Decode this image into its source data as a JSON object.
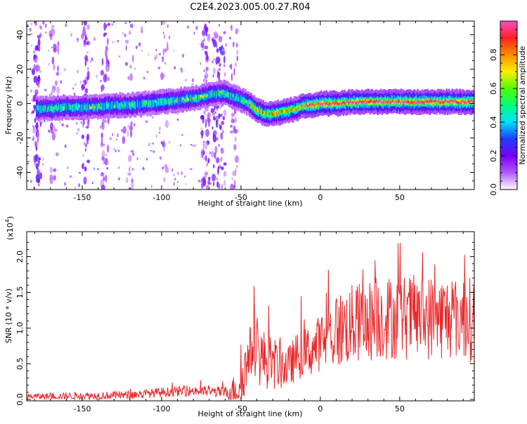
{
  "title": "C2E4.2023.005.00.27.R04",
  "chart_data": [
    {
      "type": "heatmap",
      "name": "spectrogram",
      "xlabel": "Height of straight line (km)",
      "ylabel": "Frequency (Hz)",
      "xlim": [
        -185,
        97
      ],
      "ylim": [
        -50,
        48
      ],
      "xticks": [
        -150,
        -100,
        -50,
        0,
        50
      ],
      "yticks": [
        -40,
        -20,
        0,
        20,
        40
      ],
      "ridge": {
        "x": [
          -178,
          -170,
          -160,
          -150,
          -140,
          -130,
          -120,
          -110,
          -100,
          -90,
          -80,
          -70,
          -65,
          -60,
          -55,
          -50,
          -45,
          -40,
          -35,
          -30,
          -25,
          -20,
          -15,
          -10,
          -5,
          0,
          10,
          20,
          30,
          40,
          50,
          60,
          70,
          80,
          90,
          97
        ],
        "y": [
          -3,
          -3,
          -2,
          -2,
          -2,
          -1,
          -1,
          0,
          1,
          2,
          3,
          5,
          6,
          6,
          4,
          2,
          0,
          -4,
          -6,
          -6,
          -5,
          -4,
          -3,
          -1,
          -1,
          0,
          0,
          1,
          1,
          1,
          1,
          1,
          1,
          1,
          1,
          1
        ]
      },
      "colorbar": {
        "label": "Normalized spectral amplitude",
        "range": [
          0.0,
          1.0
        ],
        "ticks": [
          "0.0",
          "0.2",
          "0.4",
          "0.6",
          "0.8"
        ],
        "tick_values": [
          0.0,
          0.2,
          0.4,
          0.6,
          0.8
        ],
        "colors": [
          "#ffffff",
          "#b25bff",
          "#7800ff",
          "#1e3cff",
          "#00e0ff",
          "#00ff7a",
          "#50ff00",
          "#ffee00",
          "#ff8c00",
          "#ff2020",
          "#ff4dc8"
        ]
      }
    },
    {
      "type": "line",
      "name": "snr",
      "xlabel": "Height of straight line (km)",
      "ylabel": "SNR (10 * v/v)",
      "scale_label": "(x10",
      "scale_exp": "4",
      "scale_close": ")",
      "xlim": [
        -185,
        97
      ],
      "ylim": [
        -0.02,
        2.35
      ],
      "xticks": [
        -150,
        -100,
        -50,
        0,
        50
      ],
      "yticks": [
        "0.0",
        "0.5",
        "1.0",
        "1.5",
        "2.0"
      ],
      "ytick_values": [
        0.0,
        0.5,
        1.0,
        1.5,
        2.0
      ],
      "series_color": "#e8282b",
      "envelope": {
        "x": [
          -185,
          -120,
          -100,
          -80,
          -60,
          -52,
          -46,
          -42,
          -38,
          -30,
          -20,
          -15,
          -10,
          -5,
          0,
          10,
          20,
          40,
          60,
          80,
          90,
          97
        ],
        "y": [
          0.04,
          0.06,
          0.1,
          0.12,
          0.1,
          0.15,
          0.5,
          0.8,
          0.6,
          0.5,
          0.45,
          0.6,
          0.65,
          0.7,
          0.8,
          0.95,
          1.05,
          1.15,
          1.15,
          1.15,
          1.15,
          1.1
        ]
      },
      "spread": {
        "x": [
          -185,
          -60,
          -48,
          -40,
          -20,
          0,
          10,
          40,
          97
        ],
        "y": [
          0.04,
          0.08,
          0.35,
          0.45,
          0.3,
          0.4,
          0.55,
          0.6,
          0.6
        ]
      }
    }
  ]
}
